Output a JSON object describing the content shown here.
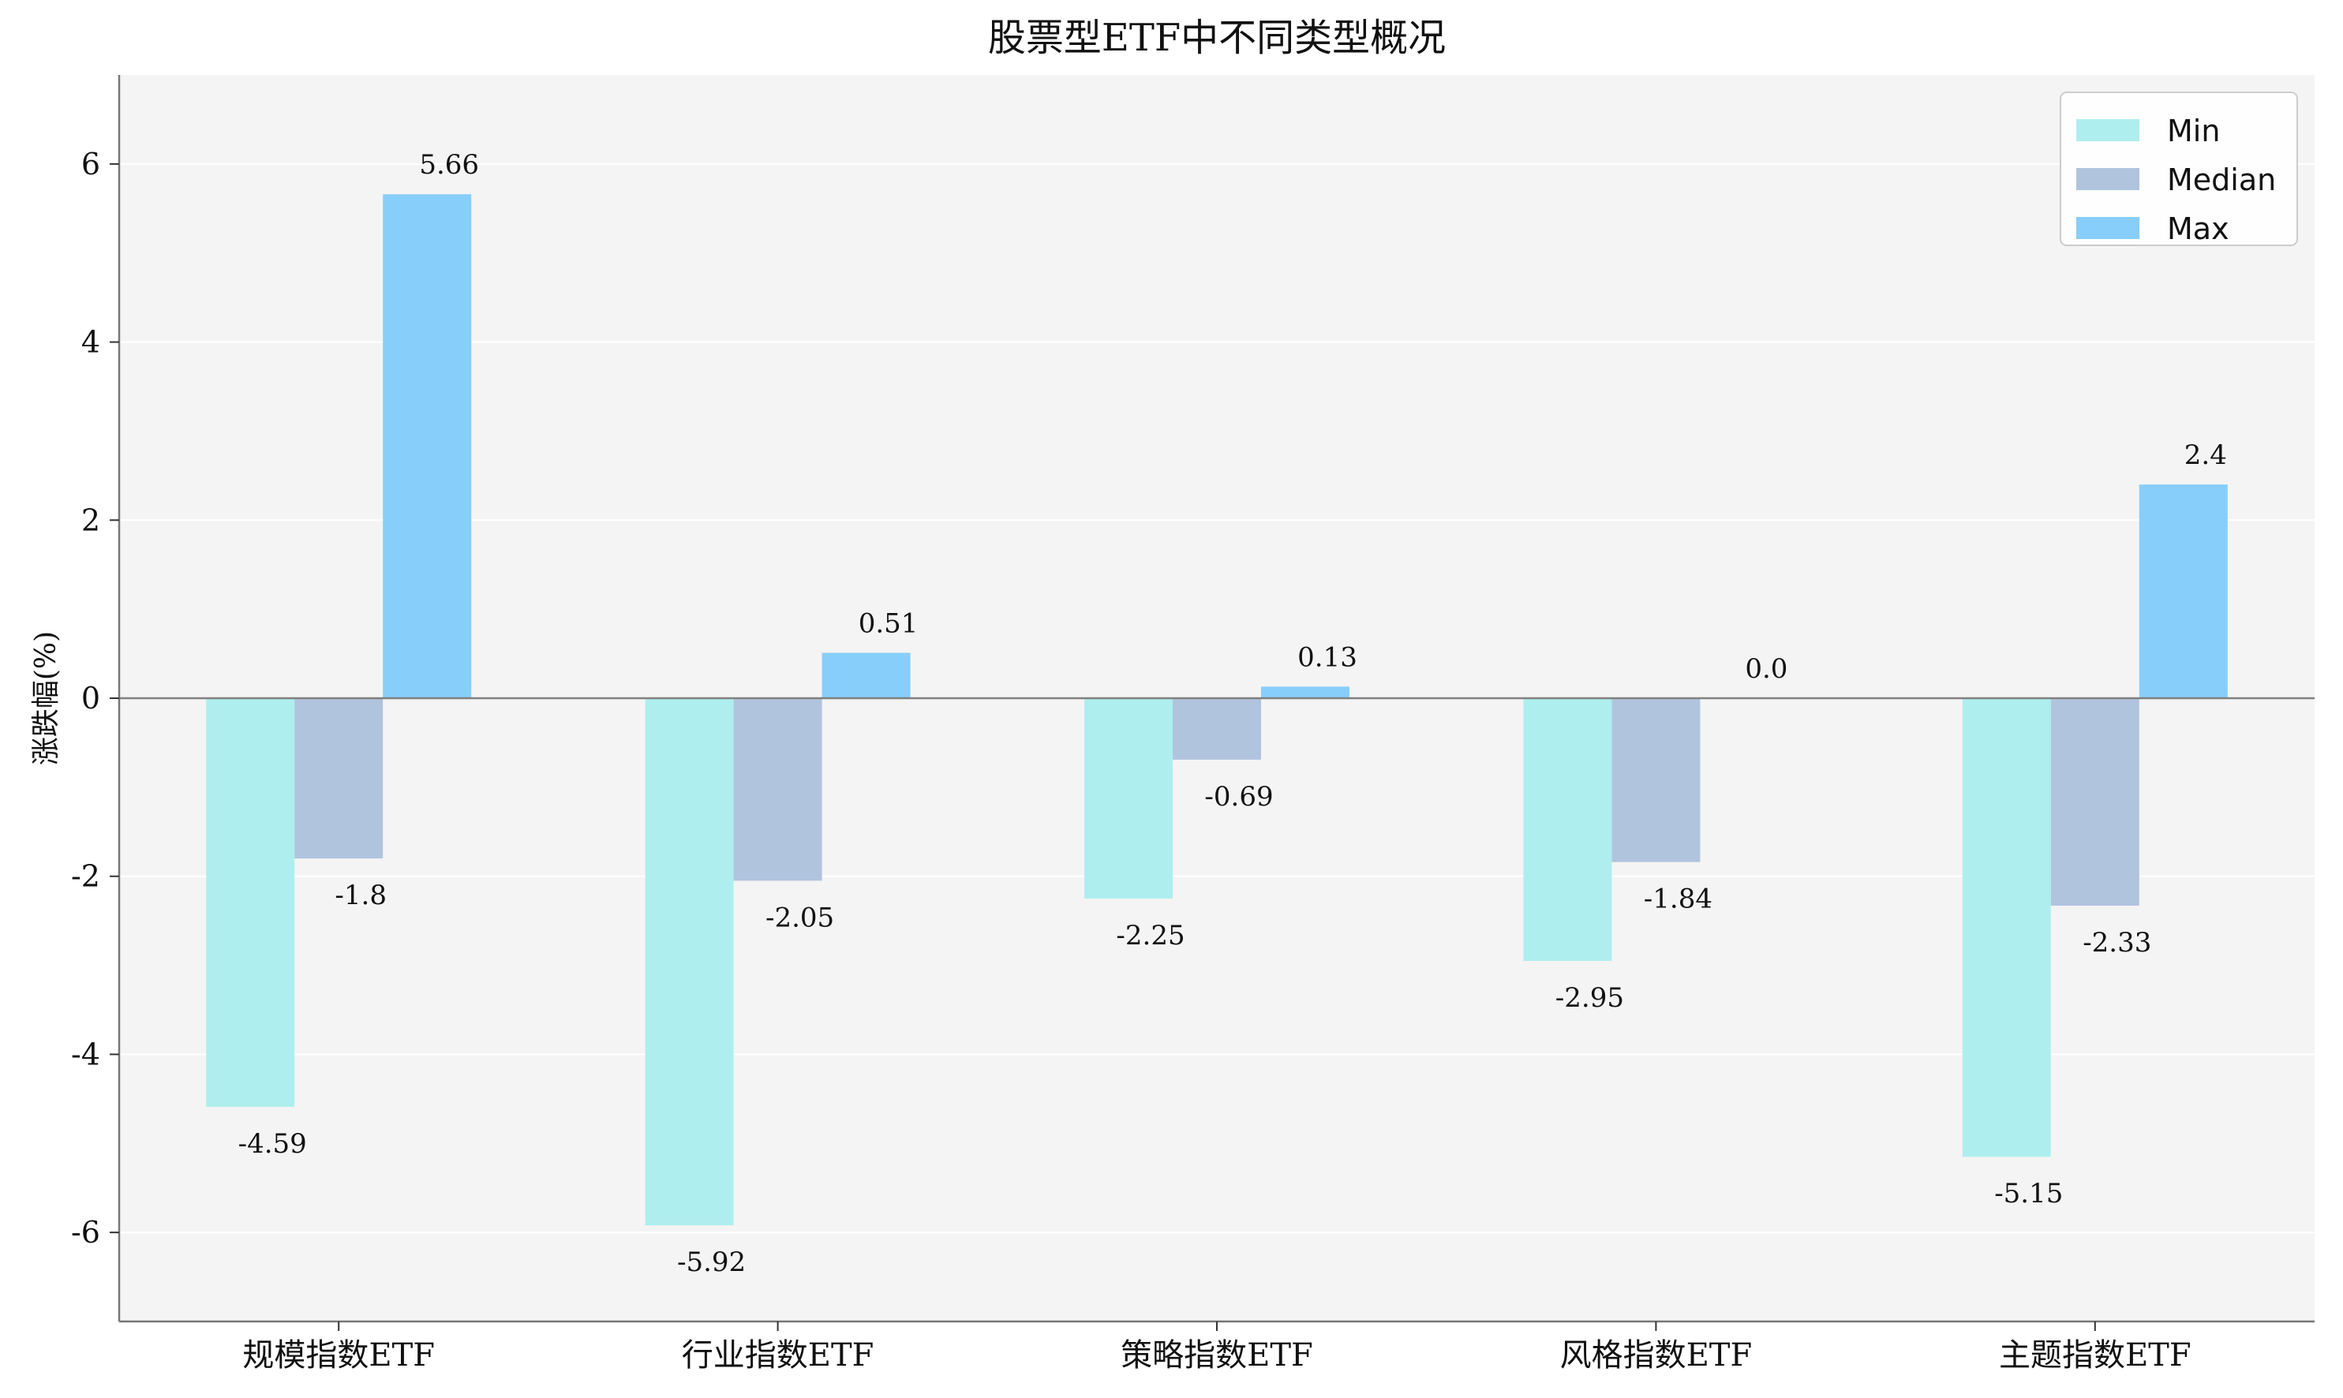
{
  "chart_data": {
    "type": "bar",
    "title": "股票型ETF中不同类型概况",
    "xlabel": "",
    "ylabel": "涨跌幅(%)",
    "categories": [
      "规模指数ETF",
      "行业指数ETF",
      "策略指数ETF",
      "风格指数ETF",
      "主题指数ETF"
    ],
    "series": [
      {
        "name": "Min",
        "color": "#afeeee",
        "values": [
          -4.59,
          -5.92,
          -2.25,
          -2.95,
          -5.15
        ],
        "labels": [
          "-4.59",
          "-5.92",
          "-2.25",
          "-2.95",
          "-5.15"
        ]
      },
      {
        "name": "Median",
        "color": "#b0c4de",
        "values": [
          -1.8,
          -2.05,
          -0.69,
          -1.84,
          -2.33
        ],
        "labels": [
          "-1.8",
          "-2.05",
          "-0.69",
          "-1.84",
          "-2.33"
        ]
      },
      {
        "name": "Max",
        "color": "#87cefa",
        "values": [
          5.66,
          0.51,
          0.13,
          0.0,
          2.4
        ],
        "labels": [
          "5.66",
          "0.51",
          "0.13",
          "0.0",
          "2.4"
        ]
      }
    ],
    "ylim": [
      -7,
      7
    ],
    "yticks": [
      -6,
      -4,
      -2,
      0,
      2,
      4,
      6
    ],
    "ytick_labels": [
      "-6",
      "-4",
      "-2",
      "0",
      "2",
      "4",
      "6"
    ],
    "grid": true,
    "legend_position": "top-right",
    "colors": {
      "plot_background": "#f4f4f4",
      "grid": "#ffffff",
      "axis": "#777777",
      "zero_line": "#808080"
    }
  }
}
